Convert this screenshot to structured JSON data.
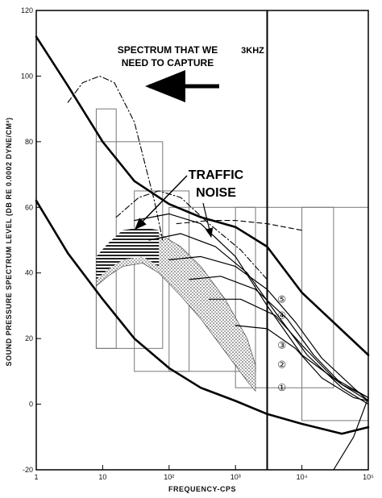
{
  "chart_data": {
    "type": "line",
    "title": "",
    "xlabel": "FREQUENCY-CPS",
    "ylabel": "SOUND PRESSURE SPECTRUM LEVEL (DB RE 0.0002 DYNE/CM²)",
    "x_scale": "log",
    "xlim": [
      1,
      100000
    ],
    "ylim": [
      -20,
      120
    ],
    "x_ticks": [
      {
        "value": 1,
        "label": "1"
      },
      {
        "value": 10,
        "label": "10"
      },
      {
        "value": 100,
        "label": "10²"
      },
      {
        "value": 1000,
        "label": "10³"
      },
      {
        "value": 10000,
        "label": "10⁴"
      },
      {
        "value": 100000,
        "label": "10⁵"
      }
    ],
    "y_ticks": [
      -20,
      0,
      20,
      40,
      60,
      80,
      100,
      120
    ],
    "vertical_marker": {
      "x": 3000,
      "label": "3KHZ"
    },
    "annotations": {
      "spectrum_title_line1": "SPECTRUM THAT WE",
      "spectrum_title_line2": "NEED TO CAPTURE",
      "traffic_line1": "TRAFFIC",
      "traffic_line2": "NOISE"
    },
    "curve_markers": [
      "⑤",
      "④",
      "③",
      "②",
      "①"
    ],
    "series": [
      {
        "style": "thick",
        "x": [
          1,
          3,
          10,
          30,
          100,
          300,
          1000,
          3000,
          10000,
          100000
        ],
        "y": [
          112,
          97,
          80,
          68,
          61,
          57,
          54,
          48,
          34,
          15
        ]
      },
      {
        "style": "thick",
        "x": [
          1,
          3,
          10,
          30,
          100,
          300,
          1000,
          3000,
          10000,
          40000,
          100000
        ],
        "y": [
          62,
          46,
          32,
          20,
          11,
          5,
          1,
          -3,
          -6,
          -9,
          -7
        ]
      },
      {
        "style": "dashdot",
        "x": [
          3,
          5,
          9,
          15,
          30,
          60,
          80
        ],
        "y": [
          92,
          98,
          100,
          98,
          86,
          62,
          50
        ]
      },
      {
        "style": "dashdot",
        "x": [
          16,
          35,
          70,
          150,
          400,
          1200,
          3000
        ],
        "y": [
          57,
          63,
          65,
          63,
          55,
          47,
          38
        ]
      },
      {
        "style": "dashed",
        "x": [
          130,
          400,
          1000,
          3000,
          10000
        ],
        "y": [
          55,
          56,
          56,
          55,
          53
        ]
      },
      {
        "style": "thin",
        "x": [
          30,
          100,
          300,
          1000,
          3000,
          10000,
          40000,
          100000
        ],
        "y": [
          56,
          58,
          55,
          45,
          30,
          15,
          6,
          2
        ]
      },
      {
        "style": "thin",
        "x": [
          50,
          150,
          500,
          1500,
          4000,
          12000,
          40000,
          100000
        ],
        "y": [
          50,
          52,
          48,
          40,
          28,
          15,
          5,
          0
        ]
      },
      {
        "style": "thin",
        "x": [
          100,
          300,
          1000,
          3000,
          8000,
          20000,
          60000,
          100000
        ],
        "y": [
          44,
          45,
          42,
          35,
          25,
          14,
          5,
          1
        ]
      },
      {
        "style": "thin",
        "x": [
          200,
          600,
          2000,
          6000,
          15000,
          40000,
          100000
        ],
        "y": [
          38,
          39,
          35,
          26,
          15,
          6,
          1
        ]
      },
      {
        "style": "thin",
        "x": [
          400,
          1200,
          4000,
          10000,
          30000,
          100000
        ],
        "y": [
          32,
          32,
          27,
          18,
          8,
          2
        ]
      },
      {
        "style": "thin",
        "x": [
          1000,
          3000,
          8000,
          20000,
          60000,
          100000
        ],
        "y": [
          24,
          23,
          17,
          8,
          2,
          1
        ]
      },
      {
        "style": "thin",
        "x": [
          30000,
          60000,
          100000
        ],
        "y": [
          -20,
          -10,
          2
        ]
      }
    ],
    "traffic_band": {
      "x": [
        8,
        12,
        20,
        40,
        70,
        150,
        300,
        700,
        1500,
        2000
      ],
      "upper": [
        44,
        48,
        52,
        53,
        52,
        48,
        42,
        32,
        20,
        12
      ],
      "lower": [
        36,
        39,
        42,
        43,
        40,
        33,
        26,
        16,
        7,
        4
      ]
    },
    "rectangles": [
      {
        "x0": 8,
        "x1": 16,
        "y0": 17,
        "y1": 90
      },
      {
        "x0": 8,
        "x1": 80,
        "y0": 17,
        "y1": 80
      },
      {
        "x0": 30,
        "x1": 200,
        "y0": 10,
        "y1": 65
      },
      {
        "x0": 100,
        "x1": 2000,
        "y0": 10,
        "y1": 60
      },
      {
        "x0": 1000,
        "x1": 30000,
        "y0": 5,
        "y1": 60
      },
      {
        "x0": 10000,
        "x1": 100000,
        "y0": -5,
        "y1": 60
      }
    ]
  }
}
